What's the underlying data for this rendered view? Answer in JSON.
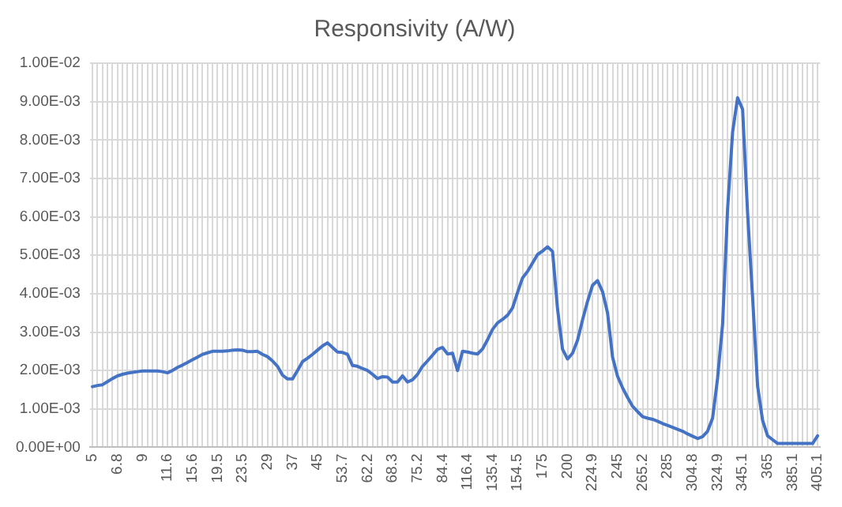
{
  "chart_data": {
    "type": "line",
    "title": "Responsivity (A/W)",
    "categories": [
      "5",
      null,
      null,
      null,
      null,
      "6.8",
      null,
      null,
      null,
      null,
      "9",
      null,
      null,
      null,
      null,
      "11.6",
      null,
      null,
      null,
      null,
      "15.6",
      null,
      null,
      null,
      null,
      "19.5",
      null,
      null,
      null,
      null,
      "23.5",
      null,
      null,
      null,
      null,
      "29",
      null,
      null,
      null,
      null,
      "37",
      null,
      null,
      null,
      null,
      "45",
      null,
      null,
      null,
      null,
      "53.7",
      null,
      null,
      null,
      null,
      "62.2",
      null,
      null,
      null,
      null,
      "68.3",
      null,
      null,
      null,
      null,
      "75.2",
      null,
      null,
      null,
      null,
      "84.4",
      null,
      null,
      null,
      null,
      "116.4",
      null,
      null,
      null,
      null,
      "135.4",
      null,
      null,
      null,
      null,
      "154.5",
      null,
      null,
      null,
      null,
      "175",
      null,
      null,
      null,
      null,
      "200",
      null,
      null,
      null,
      null,
      "224.9",
      null,
      null,
      null,
      null,
      "245",
      null,
      null,
      null,
      null,
      "265.2",
      null,
      null,
      null,
      null,
      "285",
      null,
      null,
      null,
      null,
      "304.8",
      null,
      null,
      null,
      null,
      "324.9",
      null,
      null,
      null,
      null,
      "345.1",
      null,
      null,
      null,
      null,
      "365",
      null,
      null,
      null,
      null,
      "385.1",
      null,
      null,
      null,
      null,
      "405.1"
    ],
    "series": [
      {
        "color": "#4472c4",
        "values": [
          0.00158,
          0.00161,
          0.00163,
          0.00171,
          0.00179,
          0.00186,
          0.0019,
          0.00193,
          0.00195,
          0.00197,
          0.00199,
          0.00199,
          0.00199,
          0.00199,
          0.00197,
          0.00194,
          0.002,
          0.00208,
          0.00214,
          0.00221,
          0.00228,
          0.00235,
          0.00242,
          0.00246,
          0.0025,
          0.0025,
          0.0025,
          0.00251,
          0.00253,
          0.00254,
          0.00253,
          0.00249,
          0.00249,
          0.0025,
          0.00242,
          0.00236,
          0.00225,
          0.00211,
          0.00188,
          0.00178,
          0.00178,
          0.002,
          0.00223,
          0.00232,
          0.00242,
          0.00253,
          0.00264,
          0.00272,
          0.0026,
          0.00248,
          0.00247,
          0.00242,
          0.00213,
          0.00211,
          0.00205,
          0.002,
          0.0019,
          0.00179,
          0.00184,
          0.00183,
          0.0017,
          0.0017,
          0.00186,
          0.0017,
          0.00176,
          0.0019,
          0.00211,
          0.00225,
          0.0024,
          0.00255,
          0.0026,
          0.00243,
          0.00245,
          0.002,
          0.0025,
          0.00248,
          0.00245,
          0.00243,
          0.00256,
          0.0028,
          0.00307,
          0.00324,
          0.00333,
          0.00344,
          0.00363,
          0.00403,
          0.00441,
          0.00458,
          0.0048,
          0.00502,
          0.00511,
          0.00522,
          0.0051,
          0.0036,
          0.00255,
          0.0023,
          0.00245,
          0.00279,
          0.00332,
          0.0038,
          0.00422,
          0.00434,
          0.00405,
          0.0035,
          0.00235,
          0.00185,
          0.00155,
          0.0013,
          0.00107,
          0.00093,
          0.0008,
          0.00076,
          0.00073,
          0.00068,
          0.00062,
          0.00057,
          0.00052,
          0.00047,
          0.00042,
          0.00035,
          0.00029,
          0.00023,
          0.00028,
          0.00042,
          0.00076,
          0.0018,
          0.0032,
          0.0062,
          0.0082,
          0.0091,
          0.0088,
          0.0061,
          0.0039,
          0.0016,
          0.0007,
          0.0003,
          0.0002,
          0.0001,
          0.0001,
          0.0001,
          0.0001,
          0.0001,
          0.0001,
          0.0001,
          0.0001,
          0.0003
        ]
      }
    ],
    "ylim": [
      0,
      0.01
    ],
    "yticks": [
      {
        "value": 0,
        "label": "0.00E+00"
      },
      {
        "value": 0.001,
        "label": "1.00E-03"
      },
      {
        "value": 0.002,
        "label": "2.00E-03"
      },
      {
        "value": 0.003,
        "label": "3.00E-03"
      },
      {
        "value": 0.004,
        "label": "4.00E-03"
      },
      {
        "value": 0.005,
        "label": "5.00E-03"
      },
      {
        "value": 0.006,
        "label": "6.00E-03"
      },
      {
        "value": 0.007,
        "label": "7.00E-03"
      },
      {
        "value": 0.008,
        "label": "8.00E-03"
      },
      {
        "value": 0.009,
        "label": "9.00E-03"
      },
      {
        "value": 0.01,
        "label": "1.00E-02"
      }
    ],
    "grid": true,
    "legend": false,
    "marker": "none",
    "line_style": "solid"
  }
}
